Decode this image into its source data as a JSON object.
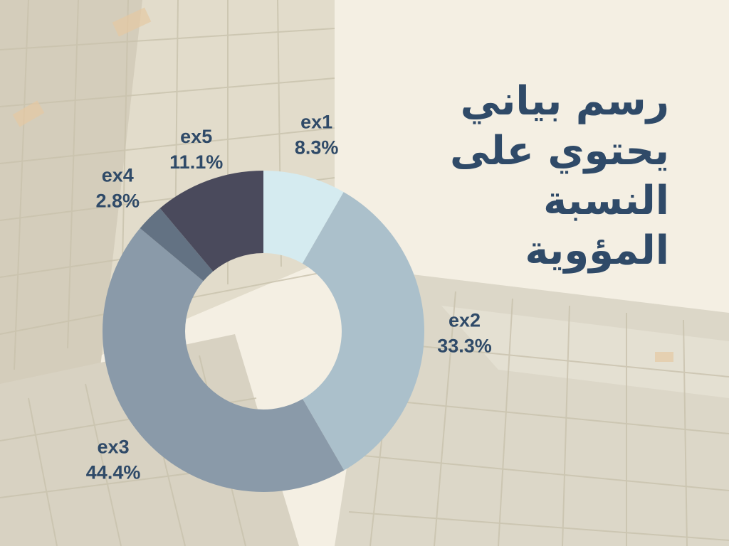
{
  "title": "رسم بياني يحتوي على النسبة المؤوية",
  "colors": {
    "background": "#f4efe3",
    "label_text": "#2f4a68",
    "title_text": "#2f4a68"
  },
  "chart_data": {
    "type": "pie",
    "variant": "donut",
    "start": "top, clockwise",
    "slices": [
      {
        "name": "ex1",
        "value": 8.3,
        "label": "8.3%",
        "color": "#d5ebf0"
      },
      {
        "name": "ex2",
        "value": 33.3,
        "label": "33.3%",
        "color": "#abc0cb"
      },
      {
        "name": "ex3",
        "value": 44.4,
        "label": "44.4%",
        "color": "#8a9aa9"
      },
      {
        "name": "ex4",
        "value": 2.8,
        "label": "2.8%",
        "color": "#637283"
      },
      {
        "name": "ex5",
        "value": 11.1,
        "label": "11.1%",
        "color": "#4a4a5c"
      }
    ]
  }
}
